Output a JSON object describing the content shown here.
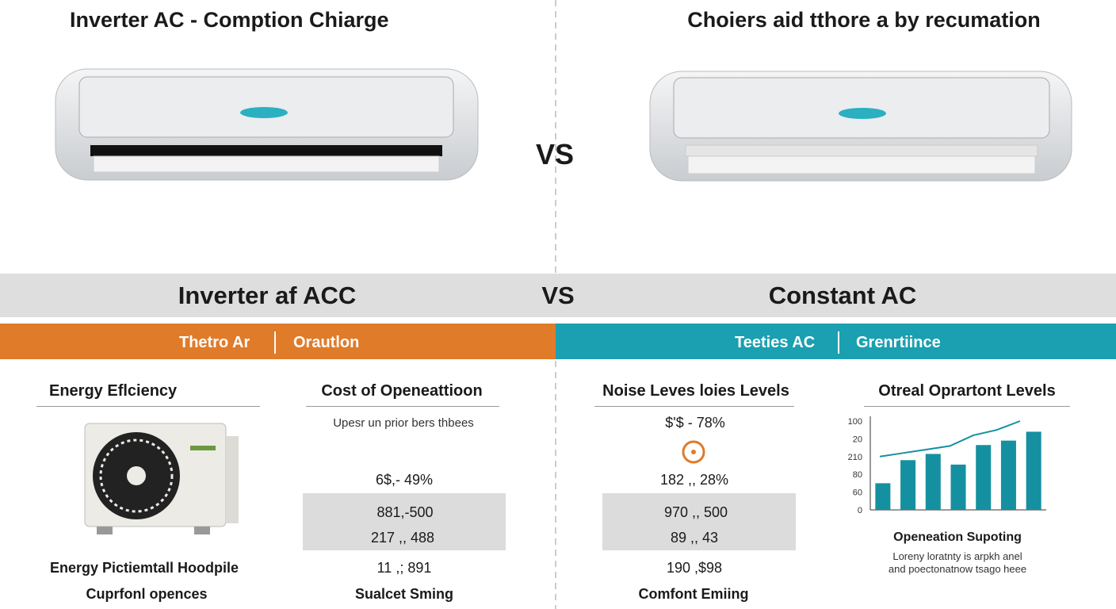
{
  "header": {
    "left_title": "Inverter AC - Comption Chiarge",
    "right_title": "Choiers aid tthore a by recumation",
    "vs": "VS"
  },
  "banner": {
    "left": "Inverter af ACC",
    "vs": "VS",
    "right": "Constant AC"
  },
  "tabs": {
    "left": [
      "Thetro Ar",
      "Orautlon"
    ],
    "right": [
      "Teeties AC",
      "Grenrtiince"
    ]
  },
  "energy": {
    "heading": "Energy Eflciency",
    "footer": [
      "Energy Pictiemtall Hoodpile",
      "Cuprfonl opences"
    ]
  },
  "cost": {
    "heading": "Cost of Openeattioon",
    "subtitle": "Upesr un prior bers thbees",
    "value": "6$,- 49%",
    "box": [
      "881,-500",
      "217 ,, 488"
    ],
    "line": "11 ,; 891",
    "footer": "Sualcet Sming"
  },
  "noise": {
    "heading": "Noise Leves loies Levels",
    "value_top": "$'$ - 78%",
    "value": "182 ,, 28%",
    "box": [
      "970 ,, 500",
      "89 ,, 43"
    ],
    "line": "190 ,$98",
    "footer": "Comfont Emiing"
  },
  "chart_data": {
    "type": "bar",
    "title": "Otreal Oprartont Levels",
    "axis_labels": [
      "100",
      "20",
      "210",
      "80",
      "60",
      "0"
    ],
    "ylim": [
      0,
      100
    ],
    "values": [
      30,
      56,
      63,
      51,
      73,
      78,
      88
    ],
    "color": "#1590a0",
    "line_values": [
      60,
      64,
      68,
      72,
      84,
      90,
      100
    ],
    "line_color": "#1590a0",
    "caption": "Openeation Supoting",
    "description": [
      "Loreny loratnty is arpkh anel",
      "and poectonatnow tsago heee"
    ]
  }
}
